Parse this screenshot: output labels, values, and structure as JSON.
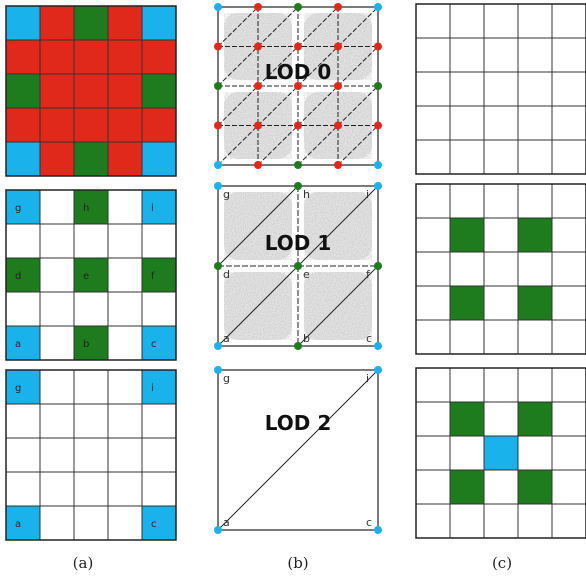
{
  "colors": {
    "blue": "#1ab2ea",
    "red": "#e0291a",
    "green": "#1e7b1e",
    "white": "#ffffff",
    "line": "#222222",
    "noise": "#9a9a9a"
  },
  "column_a": {
    "label": "(a)",
    "grid_top": [
      [
        "blue",
        "red",
        "green",
        "red",
        "blue"
      ],
      [
        "red",
        "red",
        "red",
        "red",
        "red"
      ],
      [
        "green",
        "red",
        "red",
        "red",
        "green"
      ],
      [
        "red",
        "red",
        "red",
        "red",
        "red"
      ],
      [
        "blue",
        "red",
        "green",
        "red",
        "blue"
      ]
    ],
    "grid_mid": [
      [
        "blue",
        "white",
        "green",
        "white",
        "blue"
      ],
      [
        "white",
        "white",
        "white",
        "white",
        "white"
      ],
      [
        "green",
        "white",
        "green",
        "white",
        "green"
      ],
      [
        "white",
        "white",
        "white",
        "white",
        "white"
      ],
      [
        "blue",
        "white",
        "green",
        "white",
        "blue"
      ]
    ],
    "grid_mid_labels": [
      [
        "g",
        "",
        "h",
        "",
        "i"
      ],
      [
        "",
        "",
        "",
        "",
        ""
      ],
      [
        "d",
        "",
        "e",
        "",
        "f"
      ],
      [
        "",
        "",
        "",
        "",
        ""
      ],
      [
        "a",
        "",
        "b",
        "",
        "c"
      ]
    ],
    "grid_bot": [
      [
        "blue",
        "white",
        "white",
        "white",
        "blue"
      ],
      [
        "white",
        "white",
        "white",
        "white",
        "white"
      ],
      [
        "white",
        "white",
        "white",
        "white",
        "white"
      ],
      [
        "white",
        "white",
        "white",
        "white",
        "white"
      ],
      [
        "blue",
        "white",
        "white",
        "white",
        "blue"
      ]
    ],
    "grid_bot_labels": [
      [
        "g",
        "",
        "",
        "",
        "i"
      ],
      [
        "",
        "",
        "",
        "",
        ""
      ],
      [
        "",
        "",
        "",
        "",
        ""
      ],
      [
        "",
        "",
        "",
        "",
        ""
      ],
      [
        "a",
        "",
        "",
        "",
        "c"
      ]
    ]
  },
  "column_b": {
    "label": "(b)",
    "lod0": {
      "title": "LOD 0",
      "points": [
        [
          "blue",
          "red",
          "green",
          "red",
          "blue"
        ],
        [
          "red",
          "red",
          "red",
          "red",
          "red"
        ],
        [
          "green",
          "red",
          "red",
          "red",
          "green"
        ],
        [
          "red",
          "red",
          "red",
          "red",
          "red"
        ],
        [
          "blue",
          "red",
          "green",
          "red",
          "blue"
        ]
      ]
    },
    "lod1": {
      "title": "LOD 1",
      "points": [
        [
          "blue",
          "green",
          "blue"
        ],
        [
          "green",
          "green",
          "green"
        ],
        [
          "blue",
          "green",
          "blue"
        ]
      ],
      "labels": [
        [
          "g",
          "h",
          "i"
        ],
        [
          "d",
          "e",
          "f"
        ],
        [
          "a",
          "b",
          "c"
        ]
      ]
    },
    "lod2": {
      "title": "LOD 2",
      "points": [
        [
          "blue",
          "blue"
        ],
        [
          "blue",
          "blue"
        ]
      ],
      "labels": [
        [
          "g",
          "i"
        ],
        [
          "a",
          "c"
        ]
      ]
    }
  },
  "column_c": {
    "label": "(c)",
    "grid_top": [
      [
        "white",
        "white",
        "white",
        "white",
        "white"
      ],
      [
        "white",
        "white",
        "white",
        "white",
        "white"
      ],
      [
        "white",
        "white",
        "white",
        "white",
        "white"
      ],
      [
        "white",
        "white",
        "white",
        "white",
        "white"
      ],
      [
        "white",
        "white",
        "white",
        "white",
        "white"
      ]
    ],
    "grid_mid": [
      [
        "white",
        "white",
        "white",
        "white",
        "white"
      ],
      [
        "white",
        "green",
        "white",
        "green",
        "white"
      ],
      [
        "white",
        "white",
        "white",
        "white",
        "white"
      ],
      [
        "white",
        "green",
        "white",
        "green",
        "white"
      ],
      [
        "white",
        "white",
        "white",
        "white",
        "white"
      ]
    ],
    "grid_bot": [
      [
        "white",
        "white",
        "white",
        "white",
        "white"
      ],
      [
        "white",
        "green",
        "white",
        "green",
        "white"
      ],
      [
        "white",
        "white",
        "blue",
        "white",
        "white"
      ],
      [
        "white",
        "green",
        "white",
        "green",
        "white"
      ],
      [
        "white",
        "white",
        "white",
        "white",
        "white"
      ]
    ]
  }
}
